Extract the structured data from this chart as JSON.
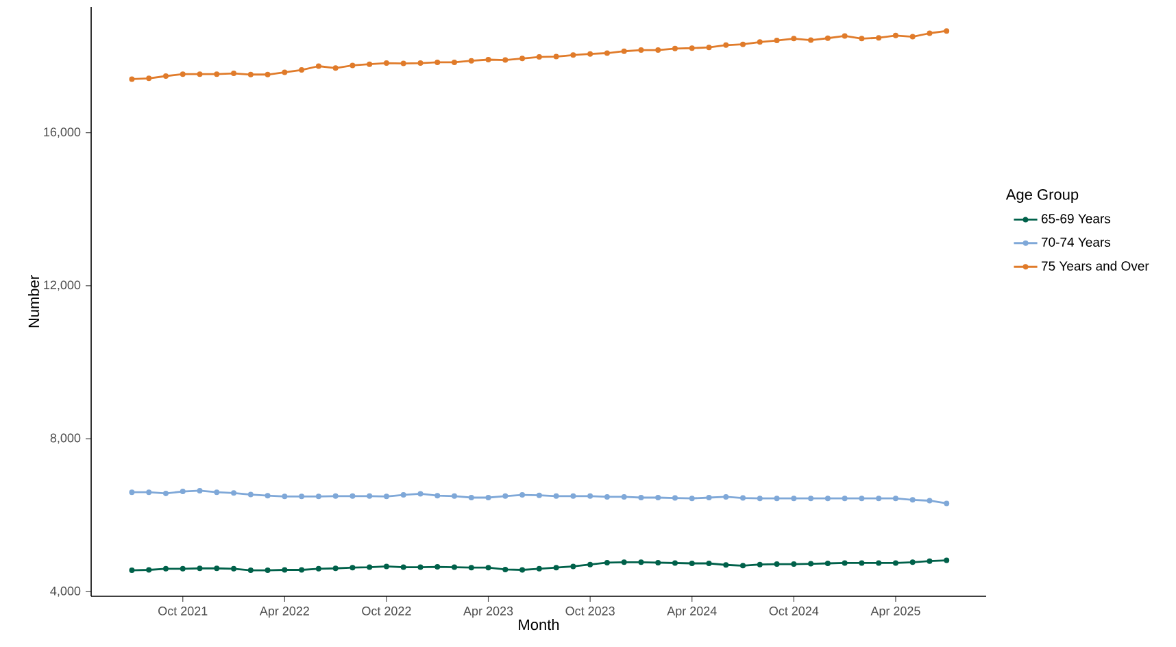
{
  "chart_data": {
    "type": "line",
    "xlabel": "Month",
    "ylabel": "Number",
    "legend_title": "Age Group",
    "x": [
      "2021-07",
      "2021-08",
      "2021-09",
      "2021-10",
      "2021-11",
      "2021-12",
      "2022-01",
      "2022-02",
      "2022-03",
      "2022-04",
      "2022-05",
      "2022-06",
      "2022-07",
      "2022-08",
      "2022-09",
      "2022-10",
      "2022-11",
      "2022-12",
      "2023-01",
      "2023-02",
      "2023-03",
      "2023-04",
      "2023-05",
      "2023-06",
      "2023-07",
      "2023-08",
      "2023-09",
      "2023-10",
      "2023-11",
      "2023-12",
      "2024-01",
      "2024-02",
      "2024-03",
      "2024-04",
      "2024-05",
      "2024-06",
      "2024-07",
      "2024-08",
      "2024-09",
      "2024-10",
      "2024-11",
      "2024-12",
      "2025-01",
      "2025-02",
      "2025-03",
      "2025-04",
      "2025-05",
      "2025-06",
      "2025-07"
    ],
    "series": [
      {
        "name": "65-69 Years",
        "color": "#00614a",
        "values": [
          4560,
          4570,
          4600,
          4600,
          4610,
          4610,
          4600,
          4560,
          4560,
          4570,
          4570,
          4600,
          4610,
          4630,
          4640,
          4660,
          4640,
          4640,
          4650,
          4640,
          4630,
          4630,
          4580,
          4570,
          4600,
          4630,
          4660,
          4710,
          4760,
          4770,
          4770,
          4760,
          4750,
          4740,
          4740,
          4700,
          4680,
          4710,
          4720,
          4720,
          4730,
          4740,
          4750,
          4750,
          4750,
          4750,
          4770,
          4800,
          4820
        ]
      },
      {
        "name": "70-74 Years",
        "color": "#7fa8d8",
        "values": [
          6600,
          6600,
          6570,
          6620,
          6640,
          6600,
          6580,
          6540,
          6510,
          6490,
          6490,
          6490,
          6500,
          6500,
          6500,
          6490,
          6530,
          6560,
          6510,
          6500,
          6460,
          6460,
          6500,
          6530,
          6520,
          6500,
          6500,
          6500,
          6480,
          6480,
          6460,
          6460,
          6450,
          6440,
          6460,
          6480,
          6450,
          6440,
          6440,
          6440,
          6440,
          6440,
          6440,
          6440,
          6440,
          6440,
          6400,
          6380,
          6310
        ]
      },
      {
        "name": "75 Years and Over",
        "color": "#e07b2a",
        "values": [
          17400,
          17420,
          17480,
          17530,
          17530,
          17530,
          17550,
          17520,
          17520,
          17580,
          17640,
          17740,
          17690,
          17760,
          17790,
          17820,
          17810,
          17820,
          17840,
          17840,
          17880,
          17910,
          17900,
          17940,
          17980,
          17990,
          18030,
          18060,
          18080,
          18130,
          18160,
          18160,
          18200,
          18210,
          18230,
          18290,
          18310,
          18370,
          18410,
          18460,
          18420,
          18470,
          18530,
          18460,
          18480,
          18540,
          18510,
          18600,
          18660
        ]
      }
    ],
    "xlim": [
      "2021-04-19",
      "2025-09-11"
    ],
    "xticks": [
      {
        "value": "2021-10",
        "label": "Oct 2021"
      },
      {
        "value": "2022-04",
        "label": "Apr 2022"
      },
      {
        "value": "2022-10",
        "label": "Oct 2022"
      },
      {
        "value": "2023-04",
        "label": "Apr 2023"
      },
      {
        "value": "2023-10",
        "label": "Oct 2023"
      },
      {
        "value": "2024-04",
        "label": "Apr 2024"
      },
      {
        "value": "2024-10",
        "label": "Oct 2024"
      },
      {
        "value": "2025-04",
        "label": "Apr 2025"
      }
    ],
    "ylim": [
      3880,
      19290
    ],
    "yticks": [
      {
        "value": 4000,
        "label": "4,000"
      },
      {
        "value": 8000,
        "label": "8,000"
      },
      {
        "value": 12000,
        "label": "12,000"
      },
      {
        "value": 16000,
        "label": "16,000"
      }
    ],
    "grid": false,
    "legend": "right",
    "marker": "circle",
    "line_style": "solid"
  }
}
